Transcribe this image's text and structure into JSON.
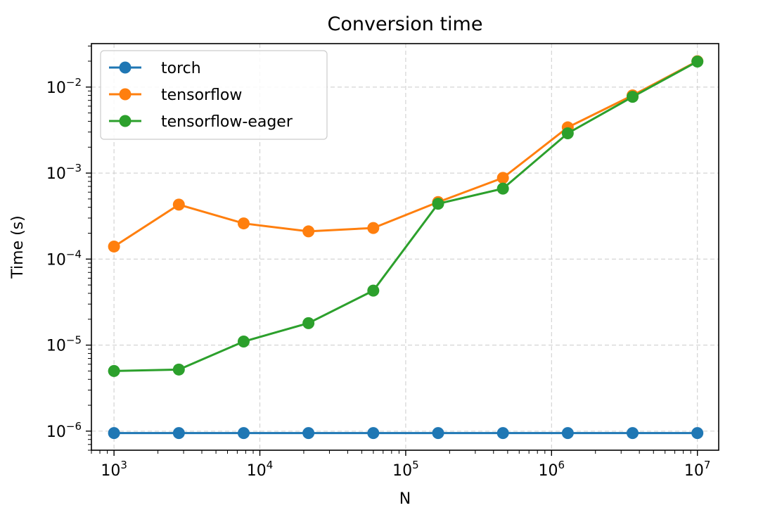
{
  "chart_data": {
    "type": "line",
    "title": "Conversion time",
    "xlabel": "N",
    "ylabel": "Time (s)",
    "xscale": "log",
    "yscale": "log",
    "xlim": [
      700,
      14000000
    ],
    "ylim": [
      6e-07,
      0.032
    ],
    "grid": true,
    "legend": "top-left",
    "x": [
      1000,
      2783,
      7743,
      21544,
      59948,
      166810,
      464159,
      1291550,
      3593814,
      10000000
    ],
    "x_ticks": [
      {
        "value": 1000,
        "base": "10",
        "exp": "3"
      },
      {
        "value": 10000,
        "base": "10",
        "exp": "4"
      },
      {
        "value": 100000,
        "base": "10",
        "exp": "5"
      },
      {
        "value": 1000000,
        "base": "10",
        "exp": "6"
      },
      {
        "value": 10000000,
        "base": "10",
        "exp": "7"
      }
    ],
    "y_ticks": [
      {
        "value": 1e-06,
        "base": "10",
        "exp": "−6"
      },
      {
        "value": 1e-05,
        "base": "10",
        "exp": "−5"
      },
      {
        "value": 0.0001,
        "base": "10",
        "exp": "−4"
      },
      {
        "value": 0.001,
        "base": "10",
        "exp": "−3"
      },
      {
        "value": 0.01,
        "base": "10",
        "exp": "−2"
      }
    ],
    "series": [
      {
        "name": "torch",
        "color": "#1f77b4",
        "values": [
          9.5e-07,
          9.5e-07,
          9.5e-07,
          9.5e-07,
          9.5e-07,
          9.5e-07,
          9.5e-07,
          9.5e-07,
          9.5e-07,
          9.5e-07
        ]
      },
      {
        "name": "tensorflow",
        "color": "#ff7f0e",
        "values": [
          0.00014,
          0.00043,
          0.00026,
          0.00021,
          0.00023,
          0.00046,
          0.00088,
          0.0034,
          0.008,
          0.02
        ]
      },
      {
        "name": "tensorflow-eager",
        "color": "#2ca02c",
        "values": [
          5e-06,
          5.2e-06,
          1.1e-05,
          1.8e-05,
          4.3e-05,
          0.00044,
          0.00066,
          0.0029,
          0.0077,
          0.0198
        ]
      }
    ]
  }
}
